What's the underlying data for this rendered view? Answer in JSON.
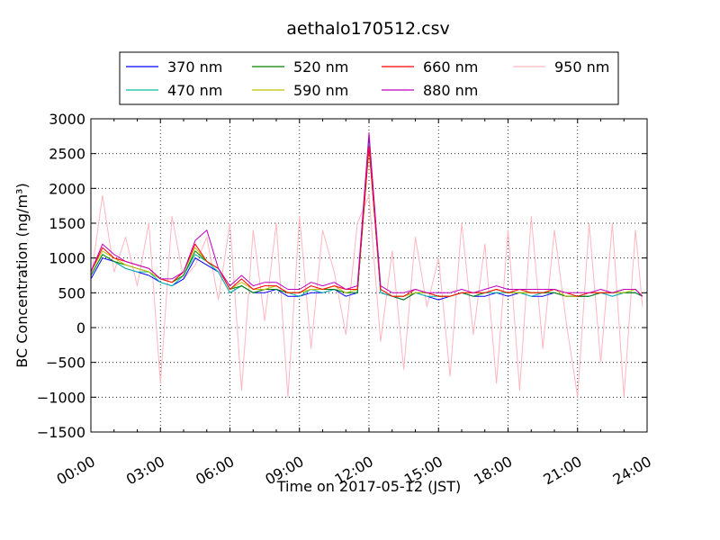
{
  "chart_data": {
    "type": "line",
    "title": "aethalo170512.csv",
    "xlabel": "Time on 2017-05-12 (JST)",
    "ylabel": "BC Concentration (ng/m³)",
    "xlim_hours": [
      0,
      24
    ],
    "ylim": [
      -1500,
      3000
    ],
    "x_ticks": [
      {
        "hour": 0,
        "label": "00:00"
      },
      {
        "hour": 3,
        "label": "03:00"
      },
      {
        "hour": 6,
        "label": "06:00"
      },
      {
        "hour": 9,
        "label": "09:00"
      },
      {
        "hour": 12,
        "label": "12:00"
      },
      {
        "hour": 15,
        "label": "15:00"
      },
      {
        "hour": 18,
        "label": "18:00"
      },
      {
        "hour": 21,
        "label": "21:00"
      },
      {
        "hour": 24,
        "label": "24:00"
      }
    ],
    "y_ticks": [
      {
        "value": 3000,
        "label": "3000"
      },
      {
        "value": 2500,
        "label": "2500"
      },
      {
        "value": 2000,
        "label": "2000"
      },
      {
        "value": 1500,
        "label": "1500"
      },
      {
        "value": 1000,
        "label": "1000"
      },
      {
        "value": 500,
        "label": "500"
      },
      {
        "value": 0,
        "label": "0"
      },
      {
        "value": -500,
        "label": "−500"
      },
      {
        "value": -1000,
        "label": "−1000"
      },
      {
        "value": -1500,
        "label": "−1500"
      }
    ],
    "grid": "dotted",
    "legend_position": "top",
    "hours": [
      0.0,
      0.5,
      1.0,
      1.5,
      2.0,
      2.5,
      3.0,
      3.5,
      4.0,
      4.5,
      5.0,
      5.5,
      6.0,
      6.5,
      7.0,
      7.5,
      8.0,
      8.5,
      9.0,
      9.5,
      10.0,
      10.5,
      11.0,
      11.5,
      12.0,
      12.5,
      13.0,
      13.5,
      14.0,
      14.5,
      15.0,
      15.5,
      16.0,
      16.5,
      17.0,
      17.5,
      18.0,
      18.5,
      19.0,
      19.5,
      20.0,
      20.5,
      21.0,
      21.5,
      22.0,
      22.5,
      23.0,
      23.5,
      23.8
    ],
    "series": [
      {
        "name": "370 nm",
        "color": "#0000ff",
        "values": [
          700,
          1000,
          950,
          850,
          800,
          750,
          650,
          600,
          700,
          1000,
          900,
          800,
          500,
          600,
          500,
          500,
          550,
          450,
          450,
          500,
          500,
          550,
          450,
          500,
          2700,
          500,
          450,
          400,
          500,
          450,
          400,
          450,
          500,
          450,
          450,
          500,
          450,
          500,
          450,
          450,
          500,
          450,
          450,
          450,
          500,
          450,
          500,
          500,
          450
        ]
      },
      {
        "name": "470 nm",
        "color": "#00c0a0",
        "values": [
          750,
          1050,
          950,
          850,
          800,
          800,
          650,
          600,
          750,
          1050,
          950,
          800,
          500,
          600,
          500,
          550,
          550,
          500,
          450,
          550,
          500,
          550,
          500,
          500,
          2650,
          500,
          450,
          450,
          500,
          450,
          450,
          450,
          500,
          450,
          500,
          500,
          500,
          500,
          450,
          500,
          500,
          450,
          450,
          450,
          500,
          450,
          500,
          500,
          450
        ]
      },
      {
        "name": "520 nm",
        "color": "#008000",
        "values": [
          750,
          1050,
          950,
          900,
          850,
          800,
          700,
          650,
          750,
          1100,
          950,
          850,
          550,
          600,
          500,
          550,
          550,
          500,
          500,
          550,
          550,
          550,
          500,
          500,
          2600,
          550,
          450,
          400,
          500,
          500,
          450,
          450,
          500,
          450,
          500,
          550,
          500,
          500,
          500,
          500,
          500,
          450,
          450,
          450,
          500,
          500,
          500,
          500,
          450
        ]
      },
      {
        "name": "590 nm",
        "color": "#c0c000",
        "values": [
          800,
          1100,
          1000,
          900,
          850,
          800,
          700,
          650,
          800,
          1150,
          950,
          850,
          550,
          650,
          550,
          550,
          600,
          500,
          500,
          550,
          550,
          600,
          500,
          550,
          2600,
          550,
          450,
          450,
          500,
          500,
          450,
          450,
          500,
          500,
          500,
          550,
          500,
          500,
          500,
          500,
          550,
          450,
          450,
          500,
          500,
          500,
          500,
          550,
          450
        ]
      },
      {
        "name": "660 nm",
        "color": "#ff0000",
        "values": [
          800,
          1150,
          1000,
          950,
          900,
          850,
          700,
          650,
          800,
          1200,
          950,
          850,
          550,
          700,
          550,
          600,
          600,
          500,
          500,
          600,
          550,
          600,
          550,
          550,
          2600,
          550,
          450,
          450,
          550,
          500,
          450,
          450,
          500,
          500,
          500,
          550,
          500,
          550,
          500,
          500,
          550,
          500,
          450,
          500,
          500,
          500,
          550,
          550,
          450
        ]
      },
      {
        "name": "880 nm",
        "color": "#c000c0",
        "values": [
          800,
          1200,
          1050,
          950,
          900,
          850,
          700,
          700,
          800,
          1250,
          1400,
          850,
          600,
          750,
          600,
          650,
          650,
          550,
          550,
          650,
          600,
          650,
          550,
          600,
          2800,
          600,
          500,
          500,
          550,
          500,
          500,
          500,
          550,
          500,
          550,
          600,
          550,
          550,
          550,
          550,
          550,
          500,
          500,
          500,
          550,
          500,
          550,
          550,
          450
        ]
      },
      {
        "name": "950 nm",
        "color": "#ffb6c1",
        "values": [
          700,
          1900,
          800,
          1300,
          600,
          1500,
          -800,
          1600,
          700,
          900,
          1300,
          400,
          1500,
          -900,
          1400,
          100,
          1500,
          -1000,
          1600,
          -300,
          1400,
          800,
          -100,
          1500,
          1900,
          -200,
          1100,
          -600,
          1300,
          300,
          1000,
          -700,
          1500,
          -100,
          1200,
          -800,
          1400,
          -900,
          1600,
          -300,
          1400,
          100,
          -1000,
          1500,
          -500,
          1500,
          -1000,
          1400,
          300
        ]
      }
    ]
  }
}
